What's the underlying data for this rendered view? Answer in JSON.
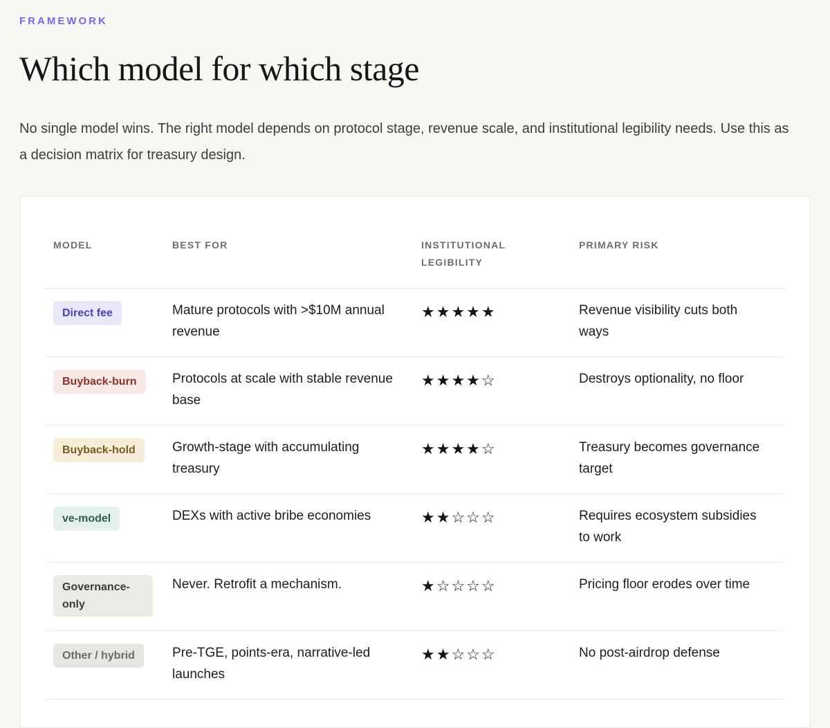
{
  "page": {
    "eyebrow": "FRAMEWORK",
    "title": "Which model for which stage",
    "intro": "No single model wins. The right model depends on protocol stage, revenue scale, and institutional legibility needs. Use this as a decision matrix for treasury design."
  },
  "colors": {
    "accent": "#7668e8",
    "page_background": "#f8f7f4",
    "card_background": "#ffffff",
    "card_border": "#e7e5e0",
    "row_divider": "#eceae4",
    "column_header_text": "#6e6d67",
    "body_text": "#1d1d1d",
    "star_color": "#141414"
  },
  "table": {
    "columns": [
      {
        "label": "MODEL"
      },
      {
        "label": "BEST FOR"
      },
      {
        "label": "INSTITUTIONAL LEGIBILITY"
      },
      {
        "label": "PRIMARY RISK"
      }
    ],
    "rows": [
      {
        "model": "Direct fee",
        "badge_colors": {
          "background": "#e9e8fa",
          "text": "#4c42b8"
        },
        "best_for": "Mature protocols with >$10M annual revenue",
        "legibility_rating": 5,
        "legibility_stars": "★★★★★",
        "primary_risk": "Revenue visibility cuts both ways"
      },
      {
        "model": "Buyback-burn",
        "badge_colors": {
          "background": "#f9eae8",
          "text": "#8c3030"
        },
        "best_for": "Protocols at scale with stable revenue base",
        "legibility_rating": 4,
        "legibility_stars": "★★★★☆",
        "primary_risk": "Destroys optionality, no floor"
      },
      {
        "model": "Buyback-hold",
        "badge_colors": {
          "background": "#f7edd8",
          "text": "#7a5a20"
        },
        "best_for": "Growth-stage with accumulating treasury",
        "legibility_rating": 4,
        "legibility_stars": "★★★★☆",
        "primary_risk": "Treasury becomes governance target"
      },
      {
        "model": "ve-model",
        "badge_colors": {
          "background": "#e3f1ea",
          "text": "#2e5f4b"
        },
        "best_for": "DEXs with active bribe economies",
        "legibility_rating": 2,
        "legibility_stars": "★★☆☆☆",
        "primary_risk": "Requires ecosystem subsidies to work"
      },
      {
        "model": "Governance-only",
        "badge_colors": {
          "background": "#ebeae5",
          "text": "#3c3b36"
        },
        "best_for": "Never. Retrofit a mechanism.",
        "legibility_rating": 1,
        "legibility_stars": "★☆☆☆☆",
        "primary_risk": "Pricing floor erodes over time"
      },
      {
        "model": "Other / hybrid",
        "badge_colors": {
          "background": "#e7e6e1",
          "text": "#6b6a63"
        },
        "best_for": "Pre-TGE, points-era, narrative-led launches",
        "legibility_rating": 2,
        "legibility_stars": "★★☆☆☆",
        "primary_risk": "No post-airdrop defense"
      }
    ]
  }
}
